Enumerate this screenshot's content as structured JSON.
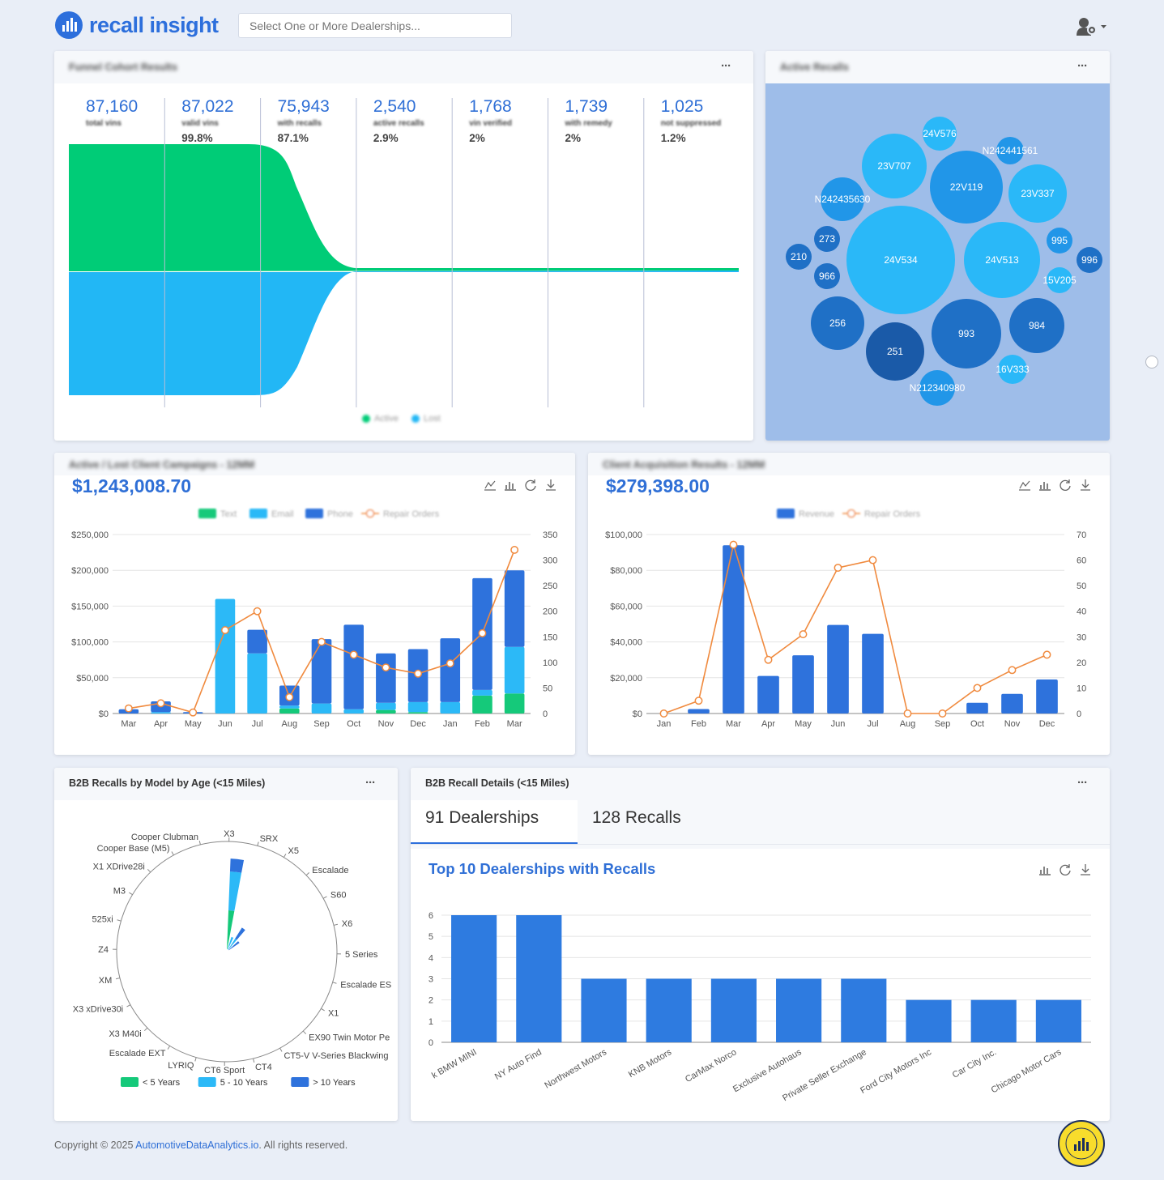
{
  "header": {
    "logo_text": "recall insight",
    "dealership_placeholder": "Select One or More Dealerships..."
  },
  "funnel": {
    "title": "Funnel Cohort Results",
    "stats": [
      {
        "value": "87,160",
        "label": "total vins",
        "pct": ""
      },
      {
        "value": "87,022",
        "label": "valid vins",
        "pct": "99.8%"
      },
      {
        "value": "75,943",
        "label": "with recalls",
        "pct": "87.1%"
      },
      {
        "value": "2,540",
        "label": "active recalls",
        "pct": "2.9%"
      },
      {
        "value": "1,768",
        "label": "vin verified",
        "pct": "2%"
      },
      {
        "value": "1,739",
        "label": "with remedy",
        "pct": "2%"
      },
      {
        "value": "1,025",
        "label": "not suppressed",
        "pct": "1.2%"
      }
    ],
    "legend": [
      {
        "name": "Active",
        "color": "#00cc77"
      },
      {
        "name": "Lost",
        "color": "#22b7f5"
      }
    ]
  },
  "active_recalls": {
    "title": "Active Recalls",
    "bubbles": [
      {
        "label": "24V576",
        "tone": "light"
      },
      {
        "label": "N242441561",
        "tone": "mid"
      },
      {
        "label": "23V707",
        "tone": "light"
      },
      {
        "label": "22V119",
        "tone": "mid"
      },
      {
        "label": "23V337",
        "tone": "light"
      },
      {
        "label": "N242435630",
        "tone": "mid"
      },
      {
        "label": "273",
        "tone": "dark"
      },
      {
        "label": "210",
        "tone": "dark"
      },
      {
        "label": "966",
        "tone": "dark"
      },
      {
        "label": "24V534",
        "tone": "light"
      },
      {
        "label": "24V513",
        "tone": "light"
      },
      {
        "label": "995",
        "tone": "mid"
      },
      {
        "label": "996",
        "tone": "dark"
      },
      {
        "label": "15V205",
        "tone": "light"
      },
      {
        "label": "256",
        "tone": "dark"
      },
      {
        "label": "251",
        "tone": "darkest"
      },
      {
        "label": "993",
        "tone": "dark"
      },
      {
        "label": "984",
        "tone": "dark"
      },
      {
        "label": "16V333",
        "tone": "light"
      },
      {
        "label": "N212340980",
        "tone": "mid"
      }
    ]
  },
  "campaigns": {
    "title": "Active / Lost Client Campaigns - 12MM",
    "total": "$1,243,008.70",
    "legend": [
      "Text",
      "Email",
      "Phone",
      "Repair Orders"
    ],
    "chart_data": {
      "type": "bar",
      "stacked": true,
      "categories": [
        "Mar",
        "Apr",
        "May",
        "Jun",
        "Jul",
        "Aug",
        "Sep",
        "Oct",
        "Nov",
        "Dec",
        "Jan",
        "Feb",
        "Mar"
      ],
      "ylim": [
        0,
        250000
      ],
      "y2lim": [
        0,
        350
      ],
      "y_ticks": [
        "$0",
        "$50,000",
        "$100,000",
        "$150,000",
        "$200,000",
        "$250,000"
      ],
      "y2_ticks": [
        "0",
        "50",
        "100",
        "150",
        "200",
        "250",
        "300",
        "350"
      ],
      "series": [
        {
          "name": "Text",
          "color": "#15c97a",
          "values": [
            0,
            0,
            0,
            0,
            0,
            7000,
            0,
            0,
            5000,
            2000,
            0,
            25000,
            28000
          ]
        },
        {
          "name": "Email",
          "color": "#2cb9f7",
          "values": [
            0,
            2000,
            0,
            160000,
            84000,
            4000,
            14000,
            6000,
            10000,
            14000,
            16000,
            8000,
            65000
          ]
        },
        {
          "name": "Phone",
          "color": "#2e72dc",
          "values": [
            6000,
            15000,
            2000,
            0,
            33000,
            28000,
            90000,
            118000,
            69000,
            74000,
            89000,
            156000,
            107000
          ]
        }
      ],
      "line": {
        "name": "Repair Orders",
        "color": "#f08a3e",
        "values": [
          10,
          20,
          2,
          163,
          200,
          32,
          140,
          115,
          90,
          78,
          98,
          157,
          320
        ]
      }
    }
  },
  "acquisition": {
    "title": "Client Acquisition Results - 12MM",
    "total": "$279,398.00",
    "legend": [
      "Revenue",
      "Repair Orders"
    ],
    "chart_data": {
      "type": "bar",
      "categories": [
        "Jan",
        "Feb",
        "Mar",
        "Apr",
        "May",
        "Jun",
        "Jul",
        "Aug",
        "Sep",
        "Oct",
        "Nov",
        "Dec"
      ],
      "ylim": [
        0,
        100000
      ],
      "y2lim": [
        0,
        70
      ],
      "y_ticks": [
        "$0",
        "$20,000",
        "$40,000",
        "$60,000",
        "$80,000",
        "$100,000"
      ],
      "y2_ticks": [
        "0",
        "10",
        "20",
        "30",
        "40",
        "50",
        "60",
        "70"
      ],
      "series": [
        {
          "name": "Revenue",
          "color": "#2e72dc",
          "values": [
            0,
            2500,
            94000,
            21000,
            32500,
            49500,
            44500,
            0,
            0,
            6000,
            11000,
            19000
          ]
        }
      ],
      "line": {
        "name": "Repair Orders",
        "color": "#f08a3e",
        "values": [
          0,
          5,
          66,
          21,
          31,
          57,
          60,
          0,
          0,
          10,
          17,
          23
        ]
      }
    }
  },
  "b2b_age": {
    "title": "B2B Recalls by Model by Age (<15 Miles)",
    "models": [
      "X3",
      "SRX",
      "X5",
      "Escalade",
      "S60",
      "X6",
      "5 Series",
      "Escalade ES",
      "X1",
      "EX90 Twin Motor Pe",
      "CT5-V V-Series Blackwing",
      "CT4",
      "CT6 Sport",
      "LYRIQ",
      "Escalade EXT",
      "X3 M40i",
      "X3 xDrive30i",
      "XM",
      "Z4",
      "525xi",
      "M3",
      "X1 XDrive28i",
      "Cooper Base (M5)",
      "Cooper Clubman"
    ],
    "legend": [
      {
        "name": "< 5 Years",
        "color": "#15c97a"
      },
      {
        "name": "5 - 10 Years",
        "color": "#2cb9f7"
      },
      {
        "name": "> 10 Years",
        "color": "#2e72dc"
      }
    ],
    "chart_data": {
      "type": "polar-bar",
      "categories": [
        "X3",
        "SRX",
        "X5",
        "Escalade"
      ],
      "series": [
        {
          "name": "< 5 Years",
          "values": [
            3,
            0,
            0,
            0
          ]
        },
        {
          "name": "5 - 10 Years",
          "values": [
            3,
            1,
            1,
            0
          ]
        },
        {
          "name": "> 10 Years",
          "values": [
            1,
            0,
            1,
            1
          ]
        }
      ]
    }
  },
  "b2b_details": {
    "title": "B2B Recall Details (<15 Miles)",
    "tabs": [
      "91 Dealerships",
      "128 Recalls"
    ],
    "chart_title": "Top 10 Dealerships with Recalls",
    "chart_data": {
      "type": "bar",
      "categories": [
        "k BMW MINI",
        "NY Auto Find",
        "Northwest Motors",
        "KNB Motors",
        "CarMax Norco",
        "Exclusive Autohaus",
        "Private Seller Exchange",
        "Ford City Motors Inc",
        "Car City Inc.",
        "Chicago Motor Cars"
      ],
      "values": [
        6,
        6,
        3,
        3,
        3,
        3,
        3,
        2,
        2,
        2
      ],
      "ylim": [
        0,
        6
      ],
      "y_ticks": [
        "0",
        "1",
        "2",
        "3",
        "4",
        "5",
        "6"
      ]
    }
  },
  "footer": {
    "prefix": "Copyright © 2025 ",
    "link": "AutomotiveDataAnalytics.io",
    "suffix": ". All rights reserved."
  },
  "colors": {
    "brand": "#2d6fdc",
    "active": "#00cc77",
    "lost": "#22b7f5",
    "bar": "#2e72dc",
    "line": "#f08a3e"
  }
}
